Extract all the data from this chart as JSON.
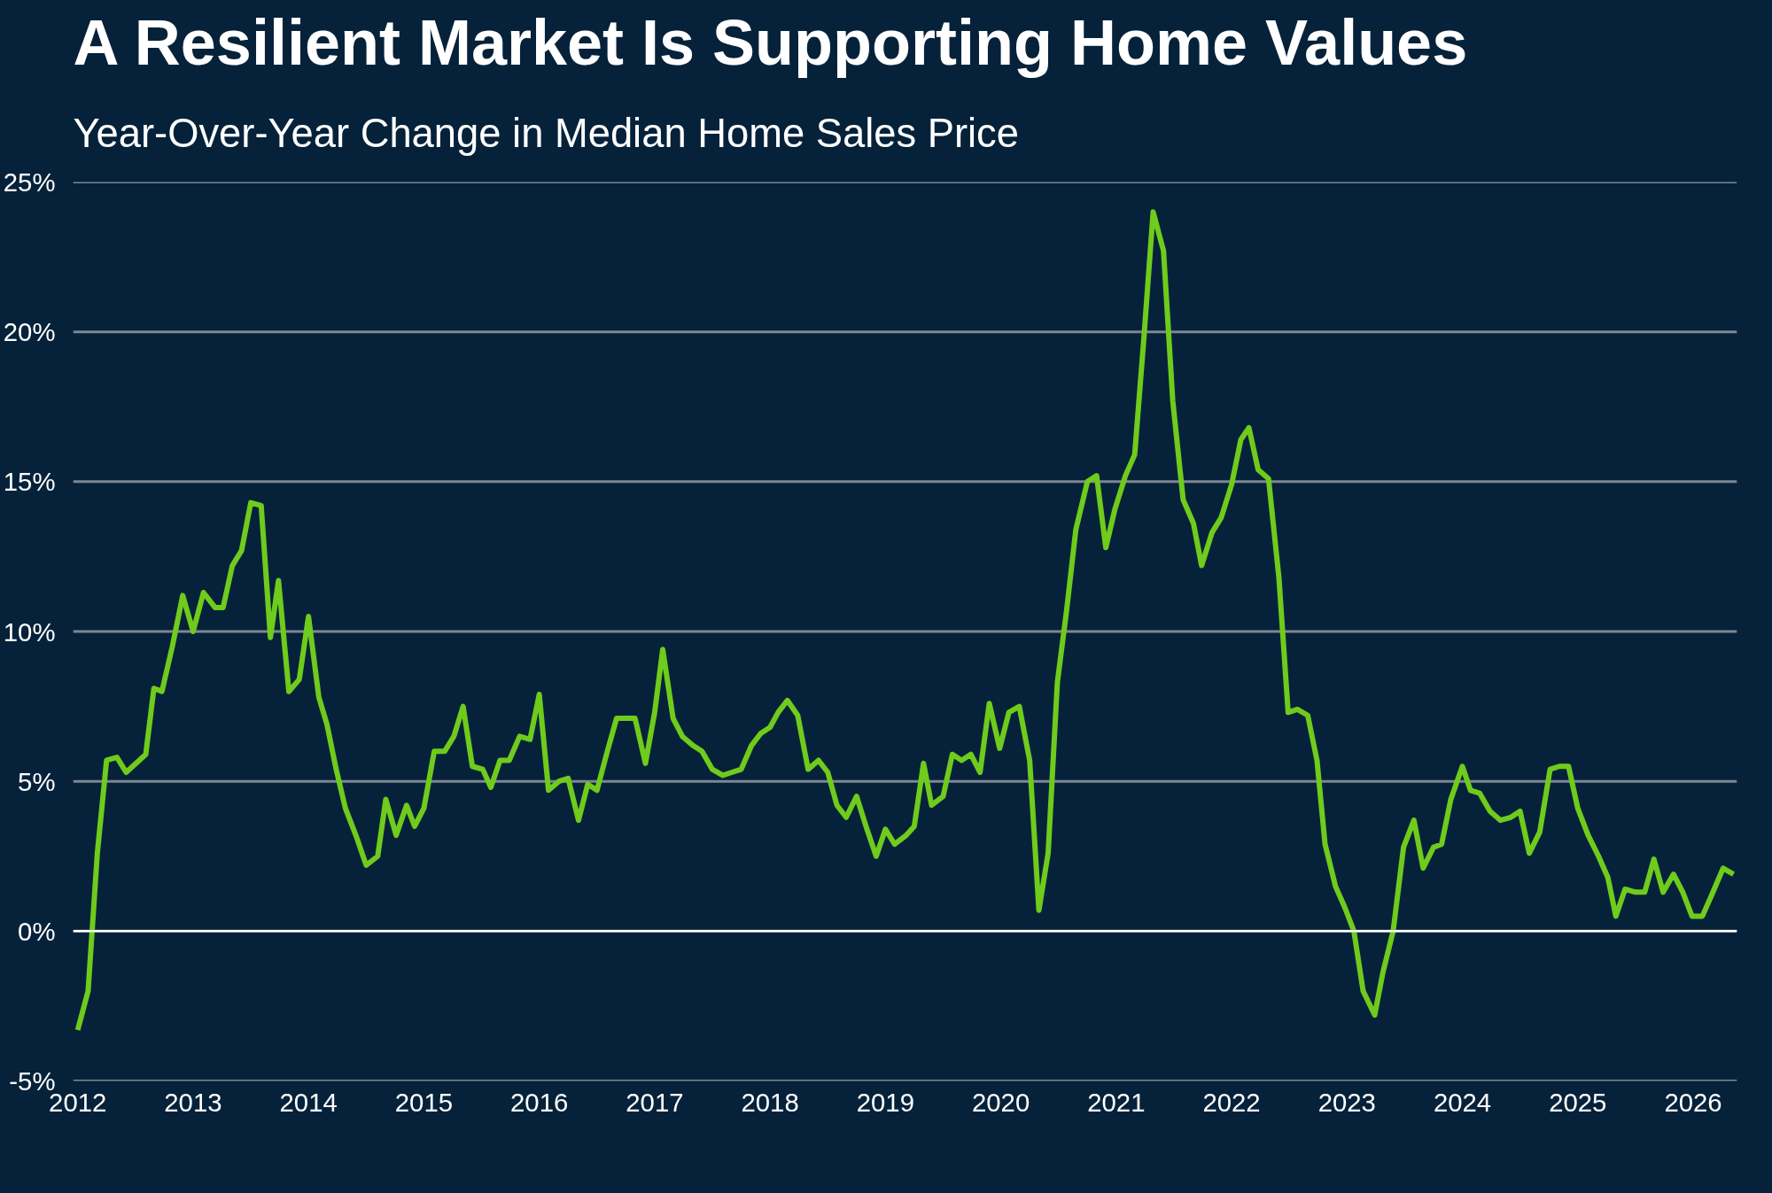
{
  "chart_data": {
    "type": "line",
    "title": "A Resilient Market Is Supporting Home Values",
    "subtitle": "Year-Over-Year Change in Median Home Sales Price",
    "x": [
      2012.0,
      2012.09,
      2012.17,
      2012.25,
      2012.34,
      2012.42,
      2012.59,
      2012.66,
      2012.73,
      2012.82,
      2012.91,
      2013.0,
      2013.09,
      2013.19,
      2013.26,
      2013.34,
      2013.42,
      2013.5,
      2013.59,
      2013.67,
      2013.74,
      2013.83,
      2013.92,
      2014.0,
      2014.09,
      2014.16,
      2014.24,
      2014.32,
      2014.42,
      2014.5,
      2014.6,
      2014.67,
      2014.76,
      2014.85,
      2014.92,
      2015.0,
      2015.09,
      2015.18,
      2015.26,
      2015.34,
      2015.42,
      2015.51,
      2015.58,
      2015.66,
      2015.74,
      2015.83,
      2015.92,
      2016.0,
      2016.08,
      2016.17,
      2016.25,
      2016.34,
      2016.42,
      2016.5,
      2016.59,
      2016.67,
      2016.76,
      2016.83,
      2016.92,
      2017.0,
      2017.07,
      2017.16,
      2017.24,
      2017.33,
      2017.41,
      2017.5,
      2017.59,
      2017.67,
      2017.75,
      2017.84,
      2017.92,
      2018.0,
      2018.07,
      2018.15,
      2018.24,
      2018.33,
      2018.42,
      2018.5,
      2018.58,
      2018.66,
      2018.75,
      2018.84,
      2018.92,
      2019.0,
      2019.08,
      2019.18,
      2019.25,
      2019.33,
      2019.4,
      2019.5,
      2019.58,
      2019.66,
      2019.74,
      2019.82,
      2019.9,
      2019.99,
      2020.07,
      2020.16,
      2020.25,
      2020.33,
      2020.41,
      2020.49,
      2020.57,
      2020.65,
      2020.75,
      2020.83,
      2020.91,
      2020.99,
      2021.08,
      2021.16,
      2021.24,
      2021.32,
      2021.41,
      2021.49,
      2021.58,
      2021.67,
      2021.74,
      2021.83,
      2021.91,
      2022.0,
      2022.08,
      2022.15,
      2022.23,
      2022.32,
      2022.41,
      2022.49,
      2022.57,
      2022.66,
      2022.74,
      2022.81,
      2022.9,
      2022.98,
      2023.06,
      2023.14,
      2023.24,
      2023.31,
      2023.4,
      2023.49,
      2023.58,
      2023.66,
      2023.75,
      2023.82,
      2023.9,
      2024.0,
      2024.07,
      2024.15,
      2024.24,
      2024.33,
      2024.42,
      2024.5,
      2024.58,
      2024.67,
      2024.76,
      2024.84,
      2024.92,
      2025.0,
      2025.09,
      2025.18,
      2025.26,
      2025.33,
      2025.41,
      2025.5,
      2025.58,
      2025.66,
      2025.74,
      2025.83,
      2025.91,
      2025.99,
      2026.08,
      2026.16,
      2026.26,
      2026.35
    ],
    "series": [
      {
        "color": "#6fcb1c",
        "values": [
          -3.3,
          -2.0,
          2.6,
          5.7,
          5.8,
          5.3,
          5.9,
          8.1,
          8.0,
          9.5,
          11.2,
          10.0,
          11.3,
          10.8,
          10.8,
          12.2,
          12.7,
          14.3,
          14.2,
          9.8,
          11.7,
          8.0,
          8.4,
          10.5,
          7.8,
          6.9,
          5.4,
          4.1,
          3.1,
          2.2,
          2.5,
          4.4,
          3.2,
          4.2,
          3.5,
          4.1,
          6.0,
          6.0,
          6.5,
          7.5,
          5.5,
          5.4,
          4.8,
          5.7,
          5.7,
          6.5,
          6.4,
          7.9,
          4.7,
          5.0,
          5.1,
          3.7,
          4.9,
          4.7,
          6.0,
          7.1,
          7.1,
          7.1,
          5.6,
          7.3,
          9.4,
          7.1,
          6.5,
          6.2,
          6.0,
          5.4,
          5.2,
          5.3,
          5.4,
          6.2,
          6.6,
          6.8,
          7.3,
          7.7,
          7.2,
          5.4,
          5.7,
          5.3,
          4.2,
          3.8,
          4.5,
          3.4,
          2.5,
          3.4,
          2.9,
          3.2,
          3.5,
          5.6,
          4.2,
          4.5,
          5.9,
          5.7,
          5.9,
          5.3,
          7.6,
          6.1,
          7.3,
          7.5,
          5.7,
          0.7,
          2.6,
          8.3,
          10.7,
          13.4,
          15.0,
          15.2,
          12.8,
          14.1,
          15.2,
          15.9,
          19.8,
          24.0,
          22.7,
          17.7,
          14.4,
          13.6,
          12.2,
          13.3,
          13.8,
          14.9,
          16.4,
          16.8,
          15.4,
          15.1,
          11.8,
          7.3,
          7.4,
          7.2,
          5.7,
          2.9,
          1.5,
          0.8,
          0.0,
          -2.0,
          -2.8,
          -1.4,
          0.0,
          2.8,
          3.7,
          2.1,
          2.8,
          2.9,
          4.4,
          5.5,
          4.7,
          4.6,
          4.0,
          3.7,
          3.8,
          4.0,
          2.6,
          3.3,
          5.4,
          5.5,
          5.5,
          4.1,
          3.2,
          2.5,
          1.8,
          0.5,
          1.4,
          1.3,
          1.3,
          2.4,
          1.3,
          1.9,
          1.3,
          0.5,
          0.5,
          1.2,
          2.1,
          1.9
        ]
      }
    ],
    "xlim": [
      2011.96,
      2026.38
    ],
    "xticks": [
      2012,
      2013,
      2014,
      2015,
      2016,
      2017,
      2018,
      2019,
      2020,
      2021,
      2022,
      2023,
      2024,
      2025,
      2026
    ],
    "ylim": [
      -5,
      25
    ],
    "yticks": [
      {
        "value": -5,
        "label": "-5%"
      },
      {
        "value": 0,
        "label": "0%"
      },
      {
        "value": 5,
        "label": "5%"
      },
      {
        "value": 10,
        "label": "10%"
      },
      {
        "value": 15,
        "label": "15%"
      },
      {
        "value": 20,
        "label": "20%"
      },
      {
        "value": 25,
        "label": "25%"
      }
    ],
    "grid": "y",
    "line_style": "solid",
    "marker": "none",
    "ref_lines": [
      {
        "axis": "y",
        "value": 0,
        "color": "#ffffff"
      }
    ]
  }
}
